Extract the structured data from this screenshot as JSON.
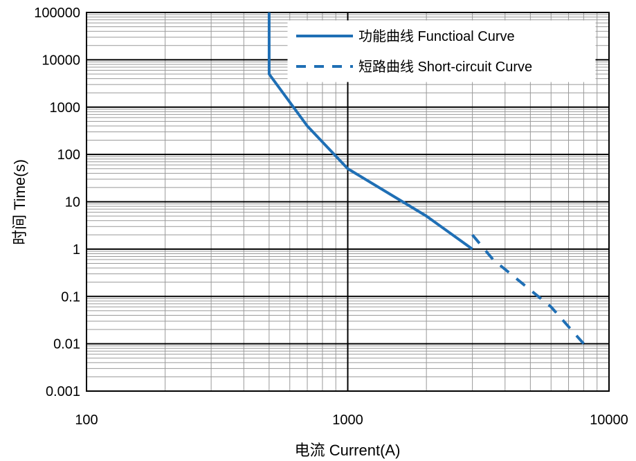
{
  "chart_data": {
    "type": "line",
    "title": "",
    "xlabel": "电流 Current(A)",
    "ylabel": "时间 Time(s)",
    "xscale": "log",
    "yscale": "log",
    "xlim": [
      100,
      10000
    ],
    "ylim": [
      0.001,
      100000
    ],
    "x_ticks": [
      "100",
      "1000",
      "10000"
    ],
    "y_ticks": [
      "0.001",
      "0.01",
      "0.1",
      "1",
      "10",
      "100",
      "1000",
      "10000",
      "100000"
    ],
    "grid": true,
    "legend_position": "top-right",
    "colors": {
      "series": "#1f6fb5",
      "grid_major": "#000000",
      "grid_minor": "#999999"
    },
    "series": [
      {
        "name": "功能曲线 Functioal Curve",
        "style": "solid",
        "x": [
          500,
          500,
          700,
          1000,
          2000,
          3000
        ],
        "y": [
          100000,
          5000,
          400,
          50,
          5,
          1
        ]
      },
      {
        "name": "短路曲线 Short-circuit Curve",
        "style": "dashed",
        "x": [
          3000,
          3600,
          6000,
          8000
        ],
        "y": [
          2,
          0.6,
          0.06,
          0.01
        ]
      }
    ]
  }
}
